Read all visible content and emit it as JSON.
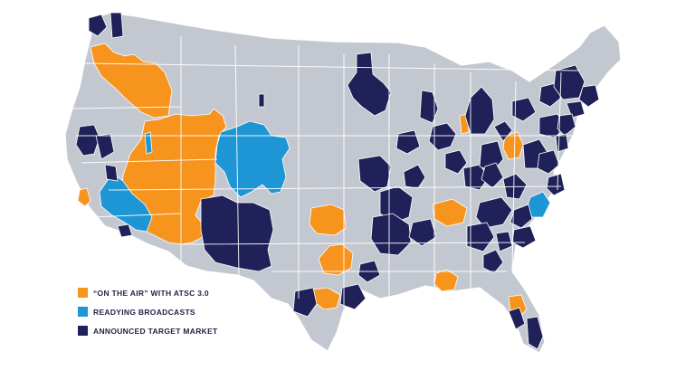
{
  "colors": {
    "background": "#ffffff",
    "land": "#c3c8d0",
    "border": "#ffffff",
    "on_air": "#f7941d",
    "readying": "#1e95d4",
    "announced": "#1f2158",
    "legend_text": "#1f2147"
  },
  "legend": {
    "items": [
      {
        "key": "on_air",
        "label": "“ON THE AIR” WITH ATSC 3.0",
        "color": "#f7941d"
      },
      {
        "key": "readying",
        "label": "READYING BROADCASTS",
        "color": "#1e95d4"
      },
      {
        "key": "announced",
        "label": "ANNOUNCED TARGET MARKET",
        "color": "#1f2158"
      }
    ]
  },
  "map": {
    "region": "contiguous United States",
    "subdivisions": "media markets"
  }
}
